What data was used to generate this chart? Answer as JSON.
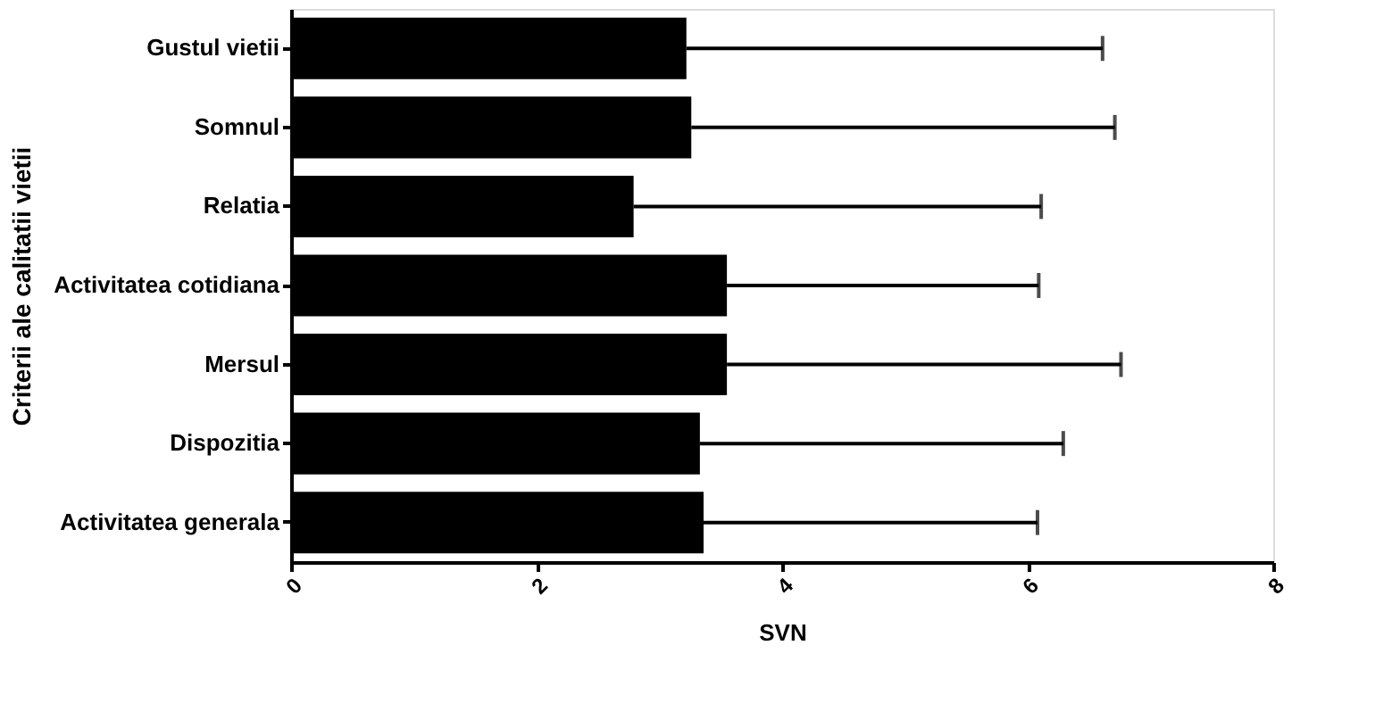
{
  "chart_data": {
    "type": "bar",
    "orientation": "horizontal",
    "xlabel": "SVN",
    "ylabel": "Criterii ale calitatii vietii",
    "categories": [
      "Gustul vietii",
      "Somnul",
      "Relatia",
      "Activitatea cotidiana",
      "Mersul",
      "Dispozitia",
      "Activitatea generala"
    ],
    "values": [
      3.22,
      3.26,
      2.79,
      3.55,
      3.55,
      3.33,
      3.36
    ],
    "errors": [
      [
        3.22,
        6.61
      ],
      [
        3.26,
        6.71
      ],
      [
        2.79,
        6.11
      ],
      [
        3.55,
        6.09
      ],
      [
        3.55,
        6.76
      ],
      [
        3.33,
        6.29
      ],
      [
        3.36,
        6.08
      ]
    ],
    "color": "#000000",
    "xlim": [
      0,
      8
    ],
    "xticks": [
      0,
      2,
      4,
      6,
      8
    ],
    "grid": false
  }
}
